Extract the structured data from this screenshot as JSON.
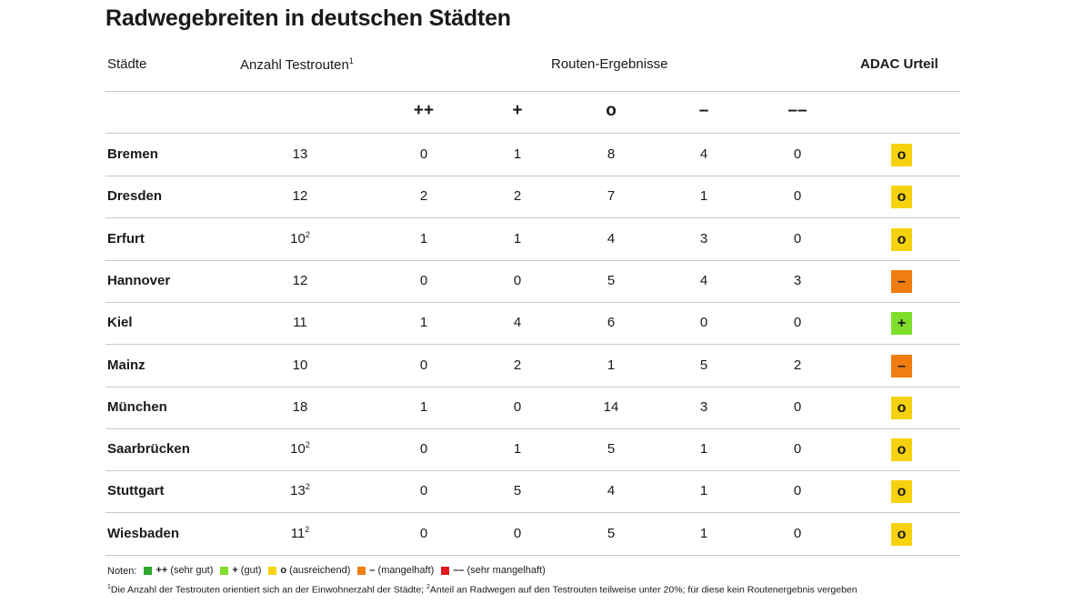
{
  "title": "Radwegebreiten in deutschen Städten",
  "colors": {
    "sehr_gut": "#2ea82e",
    "gut": "#7fdd2b",
    "ausreichend": "#f6d20e",
    "mangelhaft": "#f07d0f",
    "sehr_mangelhaft": "#e0191e",
    "rule": "#c9c9c9"
  },
  "header": {
    "cities": "Städte",
    "count": "Anzahl Testrouten",
    "count_sup": "1",
    "results": "Routen-Ergebnisse",
    "verdict": "ADAC Urteil",
    "symbols": [
      "++",
      "+",
      "o",
      "–",
      "––"
    ]
  },
  "rows": [
    {
      "city": "Bremen",
      "count": "13",
      "count_sup": "",
      "results": [
        "0",
        "1",
        "8",
        "4",
        "0"
      ],
      "verdict": "o",
      "verdict_color": "#f6d20e"
    },
    {
      "city": "Dresden",
      "count": "12",
      "count_sup": "",
      "results": [
        "2",
        "2",
        "7",
        "1",
        "0"
      ],
      "verdict": "o",
      "verdict_color": "#f6d20e"
    },
    {
      "city": "Erfurt",
      "count": "10",
      "count_sup": "2",
      "results": [
        "1",
        "1",
        "4",
        "3",
        "0"
      ],
      "verdict": "o",
      "verdict_color": "#f6d20e"
    },
    {
      "city": "Hannover",
      "count": "12",
      "count_sup": "",
      "results": [
        "0",
        "0",
        "5",
        "4",
        "3"
      ],
      "verdict": "–",
      "verdict_color": "#f07d0f"
    },
    {
      "city": "Kiel",
      "count": "11",
      "count_sup": "",
      "results": [
        "1",
        "4",
        "6",
        "0",
        "0"
      ],
      "verdict": "+",
      "verdict_color": "#7fdd2b"
    },
    {
      "city": "Mainz",
      "count": "10",
      "count_sup": "",
      "results": [
        "0",
        "2",
        "1",
        "5",
        "2"
      ],
      "verdict": "–",
      "verdict_color": "#f07d0f"
    },
    {
      "city": "München",
      "count": "18",
      "count_sup": "",
      "results": [
        "1",
        "0",
        "14",
        "3",
        "0"
      ],
      "verdict": "o",
      "verdict_color": "#f6d20e"
    },
    {
      "city": "Saarbrücken",
      "count": "10",
      "count_sup": "2",
      "results": [
        "0",
        "1",
        "5",
        "1",
        "0"
      ],
      "verdict": "o",
      "verdict_color": "#f6d20e"
    },
    {
      "city": "Stuttgart",
      "count": "13",
      "count_sup": "2",
      "results": [
        "0",
        "5",
        "4",
        "1",
        "0"
      ],
      "verdict": "o",
      "verdict_color": "#f6d20e"
    },
    {
      "city": "Wiesbaden",
      "count": "11",
      "count_sup": "2",
      "results": [
        "0",
        "0",
        "5",
        "1",
        "0"
      ],
      "verdict": "o",
      "verdict_color": "#f6d20e"
    }
  ],
  "notes": {
    "label": "Noten:",
    "items": [
      {
        "symbol": "++",
        "text": "(sehr gut)",
        "color": "#2ea82e"
      },
      {
        "symbol": "+",
        "text": "(gut)",
        "color": "#7fdd2b"
      },
      {
        "symbol": "o",
        "text": "(ausreichend)",
        "color": "#f6d20e"
      },
      {
        "symbol": "–",
        "text": "(mangelhaft)",
        "color": "#f07d0f"
      },
      {
        "symbol": "––",
        "text": "(sehr mangelhaft)",
        "color": "#e0191e"
      }
    ]
  },
  "footnote": {
    "sup1": "1",
    "text1": "Die Anzahl der Testrouten orientiert sich an der Einwohnerzahl der Städte; ",
    "sup2": "2",
    "text2": "Anteil an Radwegen auf den Testrouten teilweise unter 20%; für diese kein Routenergebnis vergeben"
  }
}
